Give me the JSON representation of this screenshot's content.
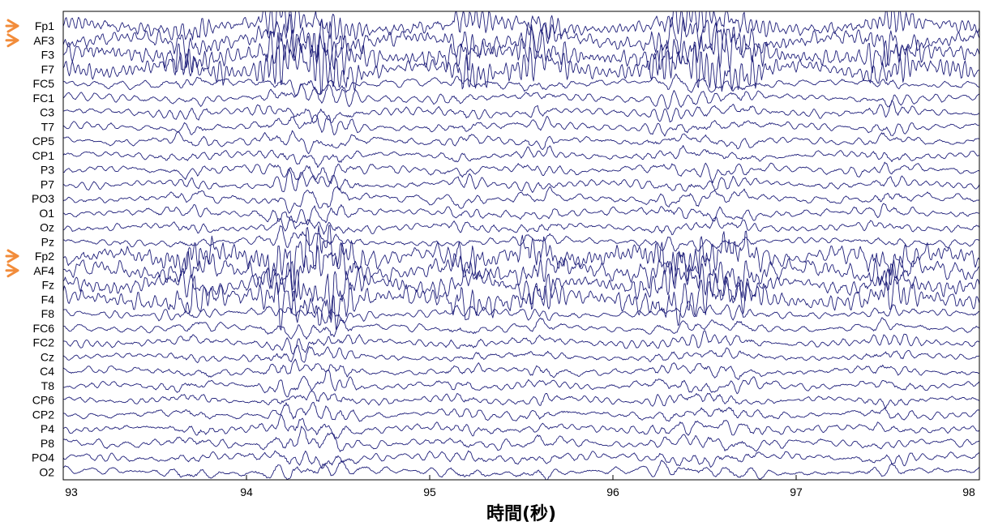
{
  "colors": {
    "trace": "#1f1f7a",
    "marker": "#f28c3a",
    "frame": "#000000",
    "background": "#ffffff"
  },
  "chart_data": {
    "type": "line",
    "title": "",
    "xlabel": "時間(秒)",
    "ylabel": "",
    "xlim": [
      93,
      98
    ],
    "x_ticks": [
      "93",
      "94",
      "95",
      "96",
      "97",
      "98"
    ],
    "grid": false,
    "legend": "none",
    "channels": [
      "Fp1",
      "AF3",
      "F3",
      "F7",
      "FC5",
      "FC1",
      "C3",
      "T7",
      "CP5",
      "CP1",
      "P3",
      "P7",
      "PO3",
      "O1",
      "Oz",
      "Pz",
      "Fp2",
      "AF4",
      "Fz",
      "F4",
      "F8",
      "FC6",
      "FC2",
      "Cz",
      "C4",
      "T8",
      "CP6",
      "CP2",
      "P4",
      "P8",
      "PO4",
      "O2"
    ],
    "marked_channels": [
      "Fp1",
      "AF3",
      "Fp2",
      "AF4"
    ],
    "marker_icon": "arrow-right-icon",
    "series_note": "32 EEG channel traces plotted on a shared time axis; amplitudes are unscaled (no amplitude axis shown).",
    "high_artifact_channels": [
      "Fp1",
      "AF3",
      "F3",
      "F7",
      "Fp2",
      "AF4",
      "Fz",
      "F4"
    ],
    "events_s": [
      93.7,
      94.2,
      94.5,
      95.2,
      95.6,
      96.3,
      96.5,
      96.7,
      97.5
    ]
  }
}
